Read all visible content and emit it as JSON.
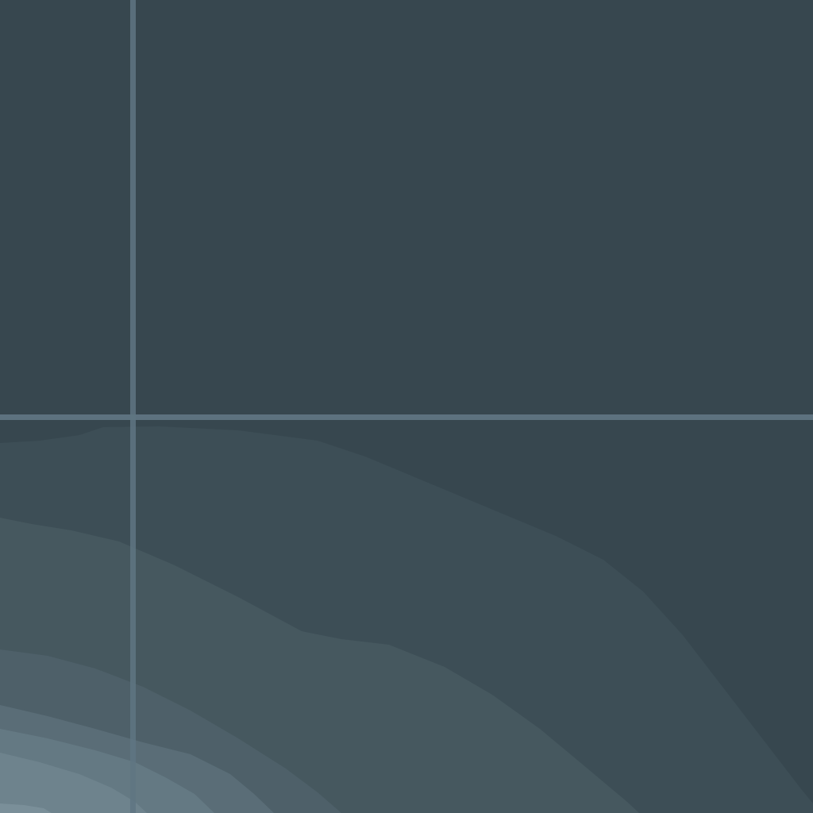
{
  "map": {
    "background_color": "#37474f",
    "gridline_color": "#5f7582",
    "density_band_colors": [
      "#3d4e56",
      "#46585f",
      "#4e6069",
      "#5a6d77",
      "#647983",
      "#6e838d",
      "#7a8f99"
    ]
  }
}
